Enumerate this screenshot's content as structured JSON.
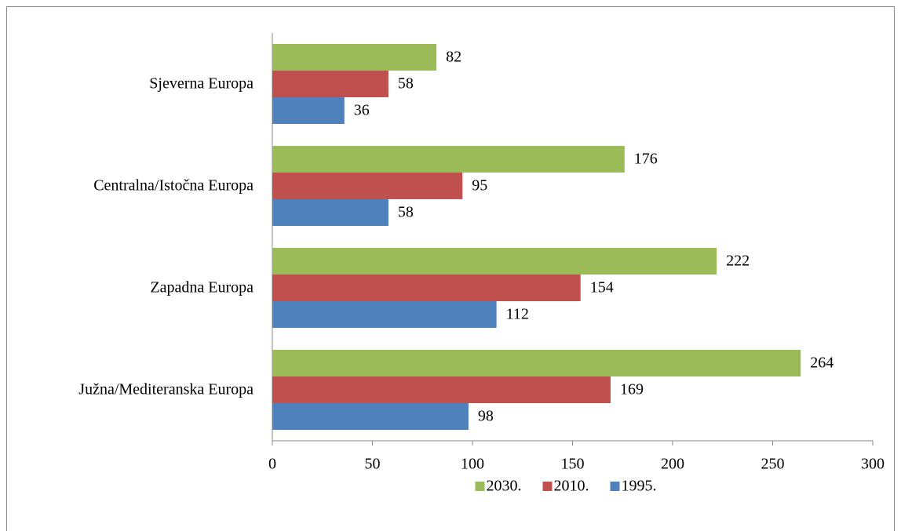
{
  "chart_data": {
    "type": "bar",
    "orientation": "horizontal",
    "categories": [
      "Sjeverna Europa",
      "Centralna/Istočna Europa",
      "Zapadna Europa",
      "Južna/Mediteranska Europa"
    ],
    "series": [
      {
        "name": "2030.",
        "color": "#9bbb59",
        "values": [
          82,
          176,
          222,
          264
        ]
      },
      {
        "name": "2010.",
        "color": "#c0504d",
        "values": [
          58,
          95,
          154,
          169
        ]
      },
      {
        "name": "1995.",
        "color": "#4f81bd",
        "values": [
          36,
          58,
          112,
          98
        ]
      }
    ],
    "xlim": [
      0,
      300
    ],
    "xticks": [
      0,
      50,
      100,
      150,
      200,
      250,
      300
    ],
    "grid": false,
    "legend": "bottom"
  }
}
